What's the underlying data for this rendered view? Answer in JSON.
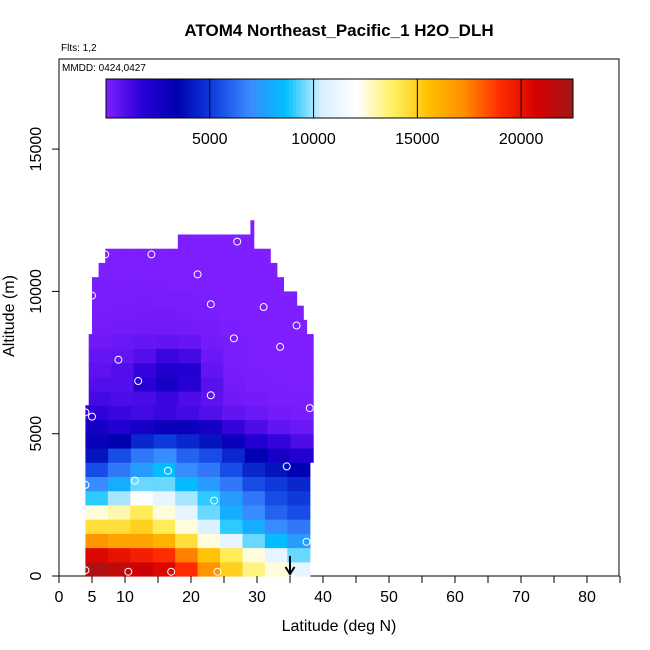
{
  "chart_data": {
    "type": "heatmap",
    "title": "ATOM4 Northeast_Pacific_1 H2O_DLH",
    "info_lines": [
      "Flts: 1,2",
      "MMDD: 0424,0427"
    ],
    "xlabel": "Latitude (deg N)",
    "ylabel": "Altitude (m)",
    "xlim": [
      0,
      85
    ],
    "ylim": [
      0,
      17500
    ],
    "x_ticks": [
      0,
      5,
      10,
      20,
      30,
      40,
      50,
      60,
      70,
      80
    ],
    "x_minor_ticks": [
      15,
      25,
      35,
      45,
      55,
      65,
      75,
      85
    ],
    "y_ticks": [
      0,
      5000,
      10000,
      15000
    ],
    "colorbar": {
      "range": [
        0,
        22500
      ],
      "ticks": [
        5000,
        10000,
        15000,
        20000
      ],
      "colors": [
        "#7f1fff",
        "#2a00d8",
        "#0000b0",
        "#1040e0",
        "#3a8aff",
        "#00c0ff",
        "#d8f0ff",
        "#ffffff",
        "#fff060",
        "#ffc000",
        "#ff8a00",
        "#ff2a00",
        "#d40000",
        "#a01818"
      ]
    },
    "layers": [
      {
        "alt": [
          0,
          500
        ],
        "lat": [
          4,
          38
        ],
        "values": [
          22000,
          21500,
          21000,
          20500,
          19000,
          17000,
          15000,
          13500,
          12500,
          11000
        ]
      },
      {
        "alt": [
          500,
          1000
        ],
        "lat": [
          4,
          38
        ],
        "values": [
          20500,
          20000,
          19500,
          19000,
          17500,
          15500,
          14000,
          12500,
          11000,
          9500
        ]
      },
      {
        "alt": [
          1000,
          1500
        ],
        "lat": [
          4,
          38
        ],
        "values": [
          17000,
          16500,
          16500,
          16000,
          14500,
          12500,
          11000,
          9500,
          8500,
          7500
        ]
      },
      {
        "alt": [
          1500,
          2000
        ],
        "lat": [
          4,
          38
        ],
        "values": [
          14500,
          14500,
          15000,
          14000,
          12500,
          10500,
          9000,
          8000,
          7000,
          6500
        ]
      },
      {
        "alt": [
          2000,
          2500
        ],
        "lat": [
          4,
          38
        ],
        "values": [
          12500,
          13000,
          14000,
          12500,
          11000,
          9500,
          8000,
          7000,
          6000,
          5500
        ]
      },
      {
        "alt": [
          2500,
          3000
        ],
        "lat": [
          4,
          38
        ],
        "values": [
          9000,
          10000,
          12000,
          11000,
          10000,
          9000,
          7500,
          6500,
          5500,
          5000
        ]
      },
      {
        "alt": [
          3000,
          3500
        ],
        "lat": [
          4,
          38
        ],
        "values": [
          7000,
          8000,
          9500,
          9500,
          8500,
          7500,
          6500,
          5500,
          5000,
          4500
        ]
      },
      {
        "alt": [
          3500,
          4000
        ],
        "lat": [
          4,
          38
        ],
        "values": [
          5500,
          6500,
          7500,
          8500,
          7000,
          6500,
          5500,
          4500,
          4000,
          3500
        ]
      },
      {
        "alt": [
          4000,
          4500
        ],
        "lat": [
          4,
          38.5
        ],
        "values": [
          4000,
          5500,
          6500,
          7000,
          6000,
          5500,
          4500,
          3500,
          2500,
          2000
        ]
      },
      {
        "alt": [
          4500,
          5000
        ],
        "lat": [
          4,
          38.5
        ],
        "values": [
          3000,
          3500,
          4500,
          5000,
          4500,
          4000,
          3000,
          2000,
          1500,
          1000
        ]
      },
      {
        "alt": [
          5000,
          5500
        ],
        "lat": [
          4,
          38.5
        ],
        "values": [
          2500,
          2000,
          2500,
          3000,
          3000,
          2500,
          1500,
          1000,
          600,
          400
        ]
      },
      {
        "alt": [
          5500,
          6000
        ],
        "lat": [
          4,
          38.5
        ],
        "values": [
          1600,
          1400,
          1200,
          1400,
          1200,
          900,
          600,
          400,
          250,
          150
        ]
      },
      {
        "alt": [
          6000,
          6500
        ],
        "lat": [
          4.5,
          38.5
        ],
        "values": [
          1200,
          1000,
          1100,
          1400,
          1000,
          700,
          300,
          200,
          100,
          80
        ]
      },
      {
        "alt": [
          6500,
          7000
        ],
        "lat": [
          4.5,
          38.5
        ],
        "values": [
          900,
          900,
          1800,
          2600,
          1800,
          800,
          200,
          100,
          80,
          60
        ]
      },
      {
        "alt": [
          7000,
          7500
        ],
        "lat": [
          4.5,
          38.5
        ],
        "values": [
          700,
          900,
          1500,
          2200,
          2000,
          600,
          150,
          80,
          60,
          50
        ]
      },
      {
        "alt": [
          7500,
          8000
        ],
        "lat": [
          4.5,
          38.5
        ],
        "values": [
          500,
          600,
          900,
          1400,
          1200,
          400,
          120,
          60,
          50,
          40
        ]
      },
      {
        "alt": [
          8000,
          8500
        ],
        "lat": [
          4.5,
          38.5
        ],
        "values": [
          300,
          400,
          500,
          600,
          500,
          250,
          100,
          50,
          40,
          30
        ]
      },
      {
        "alt": [
          8500,
          9000
        ],
        "lat": [
          5,
          37.5
        ],
        "values": [
          200,
          250,
          300,
          300,
          250,
          150,
          80,
          40,
          30,
          20
        ]
      },
      {
        "alt": [
          9000,
          9500
        ],
        "lat": [
          5,
          37
        ],
        "values": [
          150,
          180,
          200,
          200,
          150,
          100,
          60,
          30,
          20,
          15
        ]
      },
      {
        "alt": [
          9500,
          10000
        ],
        "lat": [
          5,
          36
        ],
        "values": [
          100,
          120,
          140,
          120,
          100,
          80,
          50,
          25,
          20,
          15
        ]
      },
      {
        "alt": [
          10000,
          10500
        ],
        "lat": [
          5,
          34
        ],
        "values": [
          80,
          90,
          100,
          90,
          70,
          60,
          40,
          20,
          15,
          10
        ]
      },
      {
        "alt": [
          10500,
          11000
        ],
        "lat": [
          6,
          33
        ],
        "values": [
          60,
          70,
          70,
          60,
          50,
          40,
          30,
          15,
          10,
          10
        ]
      },
      {
        "alt": [
          11000,
          11500
        ],
        "lat": [
          7,
          32
        ],
        "values": [
          40,
          50,
          50,
          40,
          30,
          25,
          20,
          12,
          10,
          10
        ]
      },
      {
        "alt": [
          11500,
          12000
        ],
        "lat": [
          18,
          29.5
        ],
        "values": [
          30,
          30,
          25,
          20,
          15,
          12,
          10,
          10,
          10,
          10
        ]
      },
      {
        "alt": [
          12000,
          12500
        ],
        "lat": [
          29,
          29.5
        ],
        "values": [
          20
        ]
      }
    ],
    "samples": [
      {
        "lat": 4,
        "alt": 200
      },
      {
        "lat": 10.5,
        "alt": 150
      },
      {
        "lat": 17,
        "alt": 150
      },
      {
        "lat": 24,
        "alt": 150
      },
      {
        "lat": 37.5,
        "alt": 1200
      },
      {
        "lat": 4,
        "alt": 3200
      },
      {
        "lat": 11.5,
        "alt": 3350
      },
      {
        "lat": 16.5,
        "alt": 3700
      },
      {
        "lat": 23.5,
        "alt": 2650
      },
      {
        "lat": 34.5,
        "alt": 3850
      },
      {
        "lat": 4,
        "alt": 5750
      },
      {
        "lat": 5,
        "alt": 5600
      },
      {
        "lat": 38,
        "alt": 5900
      },
      {
        "lat": 23,
        "alt": 6350
      },
      {
        "lat": 12,
        "alt": 6850
      },
      {
        "lat": 9,
        "alt": 7600
      },
      {
        "lat": 33.5,
        "alt": 8050
      },
      {
        "lat": 26.5,
        "alt": 8350
      },
      {
        "lat": 36,
        "alt": 8800
      },
      {
        "lat": 5,
        "alt": 9850
      },
      {
        "lat": 23,
        "alt": 9550
      },
      {
        "lat": 31,
        "alt": 9450
      },
      {
        "lat": 21,
        "alt": 10600
      },
      {
        "lat": 7,
        "alt": 11300
      },
      {
        "lat": 14,
        "alt": 11300
      },
      {
        "lat": 27,
        "alt": 11750
      }
    ],
    "arrow": {
      "lat": 35,
      "alt_from": 700,
      "alt_to": 0
    }
  }
}
